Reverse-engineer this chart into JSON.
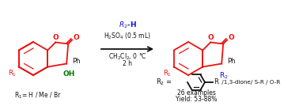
{
  "bg_color": "#ffffff",
  "red_color": "#ee1111",
  "blue_color": "#1111cc",
  "green_color": "#007700",
  "black_color": "#111111",
  "fig_width": 3.78,
  "fig_height": 1.34,
  "dpi": 100,
  "r2h_label": "$R_2$-H",
  "h2so4_label": "H$_2$SO$_4$ (0.5 mL)",
  "ch2cl2_label": "CH$_2$Cl$_2$, 0 °C",
  "time_label": "2 h",
  "r1_bottom_label": "R$_1$= H / Me / Br",
  "r2_eq_label": "R$_2$ =",
  "r_label": "R",
  "dione_label": " /1,3-dione/ S-R / O-R",
  "examples_label": "26 examples",
  "yield_label": "Yield: 53-88%"
}
